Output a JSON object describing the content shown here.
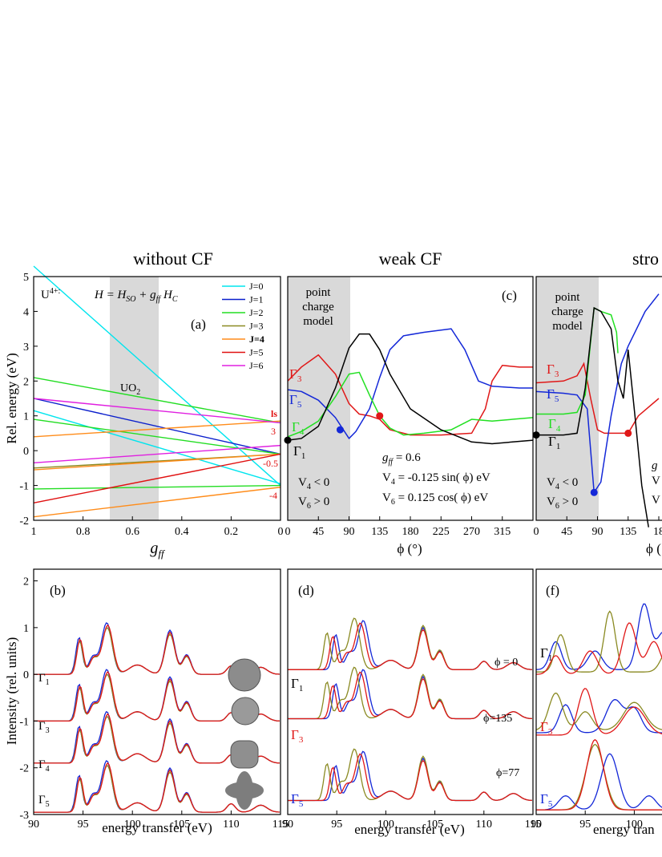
{
  "section_titles": {
    "left": "without CF",
    "middle": "weak CF",
    "right": "stro"
  },
  "colors": {
    "J0": "#00e5ee",
    "J1": "#0a1ecc",
    "J2": "#22dd22",
    "J3": "#8b8a23",
    "J4": "#ff8c1a",
    "J5": "#e01010",
    "J6": "#e020e0",
    "red": "#e01818",
    "blue": "#1428d8",
    "green": "#22e022",
    "black": "#000000",
    "olive": "#8a8a22",
    "band": "#d9d9d9"
  },
  "panel_a": {
    "label": "(a)",
    "ion": "U",
    "ion_charge": "4+:",
    "hamiltonian": "H = H",
    "hamiltonian_full": "H = H_SO + g_ff H_C",
    "band_label": "UO",
    "band_label_sub": "2",
    "ylabel": "Rel. energy (eV)",
    "xlabel_main": "g",
    "xlabel_sub": "ff",
    "yticks": [
      "5",
      "4",
      "3",
      "2",
      "1",
      "0",
      "-1",
      "-2"
    ],
    "xticks": [
      "1",
      "0.8",
      "0.6",
      "0.4",
      "0.2",
      "0"
    ],
    "right_labels": [
      "ls",
      "3",
      "-0.5",
      "-4"
    ],
    "legend": [
      "J=0",
      "J=1",
      "J=2",
      "J=3",
      "J=4",
      "J=5",
      "J=6"
    ]
  },
  "panel_c": {
    "label": "(c)",
    "box_lines": [
      "point",
      "charge",
      "model"
    ],
    "gamma_labels": [
      "Γ",
      "Γ",
      "Γ",
      "Γ"
    ],
    "gamma_subs": [
      "3",
      "5",
      "4",
      "1"
    ],
    "v4": "V",
    "v4_text": "V4 < 0",
    "v6_text": "V6 > 0",
    "gff_text": "gff = 0.6",
    "v4_eq": "V4 = -0.125 sin( ϕ) eV",
    "v6_eq": "V6 =  0.125 cos( ϕ) eV",
    "xlabel": "ϕ (°)",
    "xticks": [
      "0",
      "45",
      "90",
      "135",
      "180",
      "225",
      "270",
      "315"
    ]
  },
  "panel_e": {
    "box_lines": [
      "point",
      "charge",
      "model"
    ],
    "v4_text": "V4 < 0",
    "v6_text": "V6 > 0",
    "xticks": [
      "0",
      "45",
      "90",
      "135",
      "18"
    ],
    "xlabel": "ϕ (",
    "edge_labels": [
      "g",
      "V",
      "V"
    ]
  },
  "panel_b": {
    "label": "(b)",
    "ylabel": "Intensity (rel. units)",
    "xlabel": "energy transfer (eV)",
    "yticks": [
      "2",
      "1",
      "0",
      "-1",
      "-2",
      "-3"
    ],
    "xticks": [
      "90",
      "95",
      "100",
      "105",
      "110",
      "115"
    ],
    "gamma_subs": [
      "1",
      "3",
      "4",
      "5"
    ]
  },
  "panel_d": {
    "label": "(d)",
    "xlabel": "energy transfer (eV)",
    "xticks": [
      "90",
      "95",
      "100",
      "105",
      "110",
      "115"
    ],
    "phi_labels": [
      "ϕ = 0",
      "ϕ=135",
      "ϕ=77"
    ],
    "gamma_subs": [
      "1",
      "3",
      "5"
    ]
  },
  "panel_f": {
    "label": "(f)",
    "xlabel": "energy tran",
    "xticks": [
      "90",
      "95",
      "100"
    ],
    "gamma_subs": [
      "1",
      "3",
      "5"
    ]
  },
  "chart_data": [
    {
      "type": "line",
      "panel": "(a)",
      "xlabel": "gff",
      "ylabel": "Rel. energy (eV)",
      "xlim": [
        1,
        0
      ],
      "ylim": [
        -2,
        5
      ],
      "grid": false,
      "legend": "top-right",
      "annotations": [
        "UO2 band 0.7–0.5"
      ],
      "series": [
        {
          "name": "J=0",
          "x": [
            1,
            0
          ],
          "y": [
            5.3,
            -1.0
          ]
        },
        {
          "name": "J=0",
          "x": [
            1,
            0
          ],
          "y": [
            1.15,
            -0.95
          ]
        },
        {
          "name": "J=1",
          "x": [
            1,
            0
          ],
          "y": [
            1.5,
            -0.1
          ]
        },
        {
          "name": "J=2",
          "x": [
            1,
            0
          ],
          "y": [
            2.1,
            0.8
          ]
        },
        {
          "name": "J=2",
          "x": [
            1,
            0
          ],
          "y": [
            0.9,
            -0.1
          ]
        },
        {
          "name": "J=2",
          "x": [
            1,
            0
          ],
          "y": [
            -1.1,
            -1.0
          ]
        },
        {
          "name": "J=3",
          "x": [
            1,
            0
          ],
          "y": [
            -0.5,
            -0.1
          ]
        },
        {
          "name": "J=4",
          "x": [
            1,
            0
          ],
          "y": [
            0.4,
            0.85
          ]
        },
        {
          "name": "J=4",
          "x": [
            1,
            0
          ],
          "y": [
            -0.55,
            -0.1
          ]
        },
        {
          "name": "J=4",
          "x": [
            1,
            0
          ],
          "y": [
            -1.9,
            -1.05
          ]
        },
        {
          "name": "J=5",
          "x": [
            1,
            0
          ],
          "y": [
            -1.5,
            -0.1
          ]
        },
        {
          "name": "J=6",
          "x": [
            1,
            0
          ],
          "y": [
            1.5,
            0.8
          ]
        },
        {
          "name": "J=6",
          "x": [
            1,
            0
          ],
          "y": [
            -0.35,
            0.15
          ]
        }
      ]
    },
    {
      "type": "line",
      "panel": "(c)",
      "xlabel": "ϕ (°)",
      "ylabel": "Rel. energy (eV)",
      "xlim": [
        0,
        360
      ],
      "ylim": [
        -2,
        5
      ],
      "annotations": [
        "point charge model region 0–90"
      ],
      "series": [
        {
          "name": "Γ3",
          "x": [
            0,
            20,
            45,
            70,
            90,
            105,
            120,
            135,
            150,
            180,
            225,
            270,
            290,
            300,
            315,
            340,
            360
          ],
          "y": [
            2.0,
            2.4,
            2.75,
            2.2,
            1.35,
            1.05,
            1.0,
            0.9,
            0.6,
            0.45,
            0.45,
            0.5,
            1.2,
            2.0,
            2.45,
            2.4,
            2.4
          ]
        },
        {
          "name": "Γ5",
          "x": [
            0,
            20,
            45,
            70,
            90,
            100,
            120,
            135,
            150,
            170,
            200,
            240,
            260,
            280,
            300,
            340,
            360
          ],
          "y": [
            1.75,
            1.7,
            1.45,
            0.95,
            0.35,
            0.55,
            1.2,
            2.1,
            2.9,
            3.3,
            3.4,
            3.5,
            2.9,
            2.0,
            1.85,
            1.8,
            1.8
          ]
        },
        {
          "name": "Γ4",
          "x": [
            0,
            20,
            45,
            70,
            90,
            105,
            120,
            135,
            150,
            170,
            200,
            240,
            270,
            300,
            330,
            360
          ],
          "y": [
            0.4,
            0.55,
            0.85,
            1.55,
            2.2,
            2.25,
            1.6,
            1.0,
            0.65,
            0.45,
            0.5,
            0.6,
            0.9,
            0.85,
            0.9,
            0.95
          ]
        },
        {
          "name": "Γ1",
          "x": [
            0,
            20,
            45,
            70,
            90,
            105,
            120,
            135,
            150,
            180,
            225,
            270,
            300,
            330,
            360
          ],
          "y": [
            0.3,
            0.35,
            0.7,
            1.8,
            2.95,
            3.35,
            3.35,
            2.9,
            2.2,
            1.2,
            0.6,
            0.25,
            0.2,
            0.25,
            0.3
          ]
        }
      ],
      "points": [
        {
          "x": 0,
          "y": 0.3,
          "color": "black"
        },
        {
          "x": 77,
          "y": 0.6,
          "color": "blue"
        },
        {
          "x": 135,
          "y": 1.0,
          "color": "red"
        }
      ]
    },
    {
      "type": "line",
      "panel": "(b)",
      "xlabel": "energy transfer (eV)",
      "ylabel": "Intensity (rel. units)",
      "xlim": [
        90,
        115
      ],
      "ylim": [
        -3,
        2
      ],
      "series": [
        {
          "name": "Γ1",
          "offset": 0
        },
        {
          "name": "Γ3",
          "offset": -1.0
        },
        {
          "name": "Γ4",
          "offset": -1.9
        },
        {
          "name": "Γ5",
          "offset": -2.95
        }
      ]
    },
    {
      "type": "line",
      "panel": "(d)",
      "xlabel": "energy transfer (eV)",
      "xlim": [
        90,
        115
      ],
      "series": [
        {
          "name": "Γ1",
          "annotation": "ϕ = 0"
        },
        {
          "name": "Γ3",
          "annotation": "ϕ=135"
        },
        {
          "name": "Γ5",
          "annotation": "ϕ=77"
        }
      ]
    }
  ]
}
